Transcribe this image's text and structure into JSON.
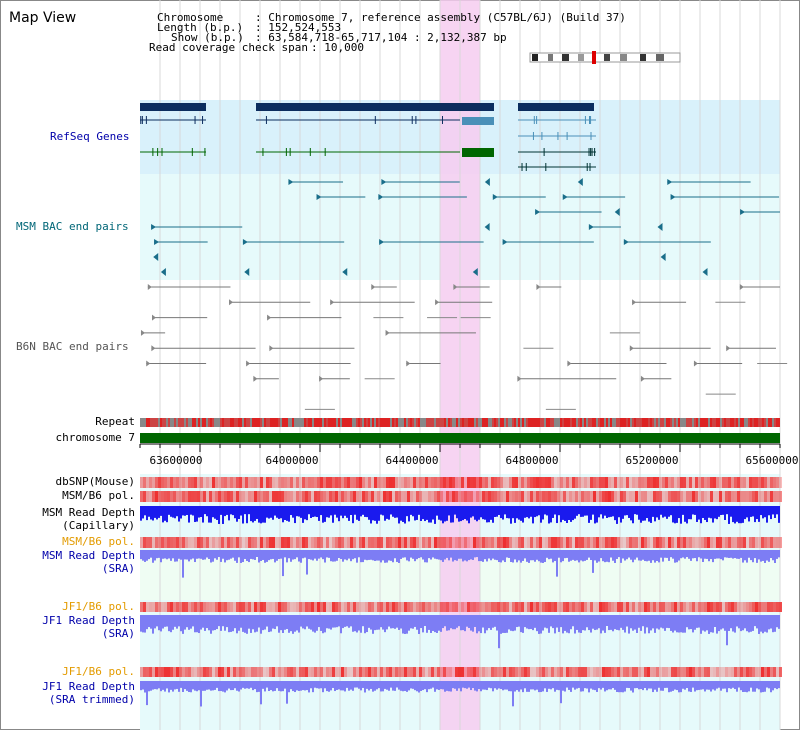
{
  "title": "Map View",
  "info": {
    "chromosome_label": "Chromosome",
    "chromosome_value": ": Chromosome 7, reference assembly (C57BL/6J) (Build 37)",
    "length_label": "Length (b.p.)",
    "length_value": ": 152,524,553",
    "show_label": "Show (b.p.)",
    "show_value": ": 63,584,718-65,717,104 : 2,132,387 bp",
    "coverage_label": "Read coverage check span",
    "coverage_value": ": 10,000"
  },
  "tracks": {
    "refseq": "RefSeq Genes",
    "msm_bac": "MSM BAC end pairs",
    "b6n_bac": "B6N BAC end pairs",
    "repeat": "Repeat",
    "chromosome": "chromosome 7",
    "dbsnp": "dbSNP(Mouse)",
    "msm_b6_pol_1": "MSM/B6 pol.",
    "msm_depth_cap_1": "MSM Read Depth",
    "msm_depth_cap_2": "(Capillary)",
    "msm_b6_pol_2": "MSM/B6 pol.",
    "msm_depth_sra_1": "MSM Read Depth",
    "msm_depth_sra_2": "(SRA)",
    "jf1_b6_pol_1": "JF1/B6 pol.",
    "jf1_depth_sra_1": "JF1 Read Depth",
    "jf1_depth_sra_2": "(SRA)",
    "jf1_b6_pol_2": "JF1/B6 pol.",
    "jf1_depth_trim_1": "JF1 Read Depth",
    "jf1_depth_trim_2": "(SRA trimmed)"
  },
  "axis_ticks": [
    "63600000",
    "64000000",
    "64400000",
    "64800000",
    "65200000",
    "65600000"
  ],
  "colors": {
    "refseq_bg": "#d9f1fb",
    "bac_bg": "#e6fafb",
    "highlight": "#f6ccf0",
    "gene_navy": "#0c2d5e",
    "gene_green": "#006600",
    "gene_teal": "#4a90b8",
    "depth_blue": "#1a1aee",
    "depth_violet": "#7d7df4",
    "pol_red": "#ee3030",
    "chrom_green": "#006600",
    "label_navy": "#0000aa",
    "label_orange": "#e39b00"
  }
}
